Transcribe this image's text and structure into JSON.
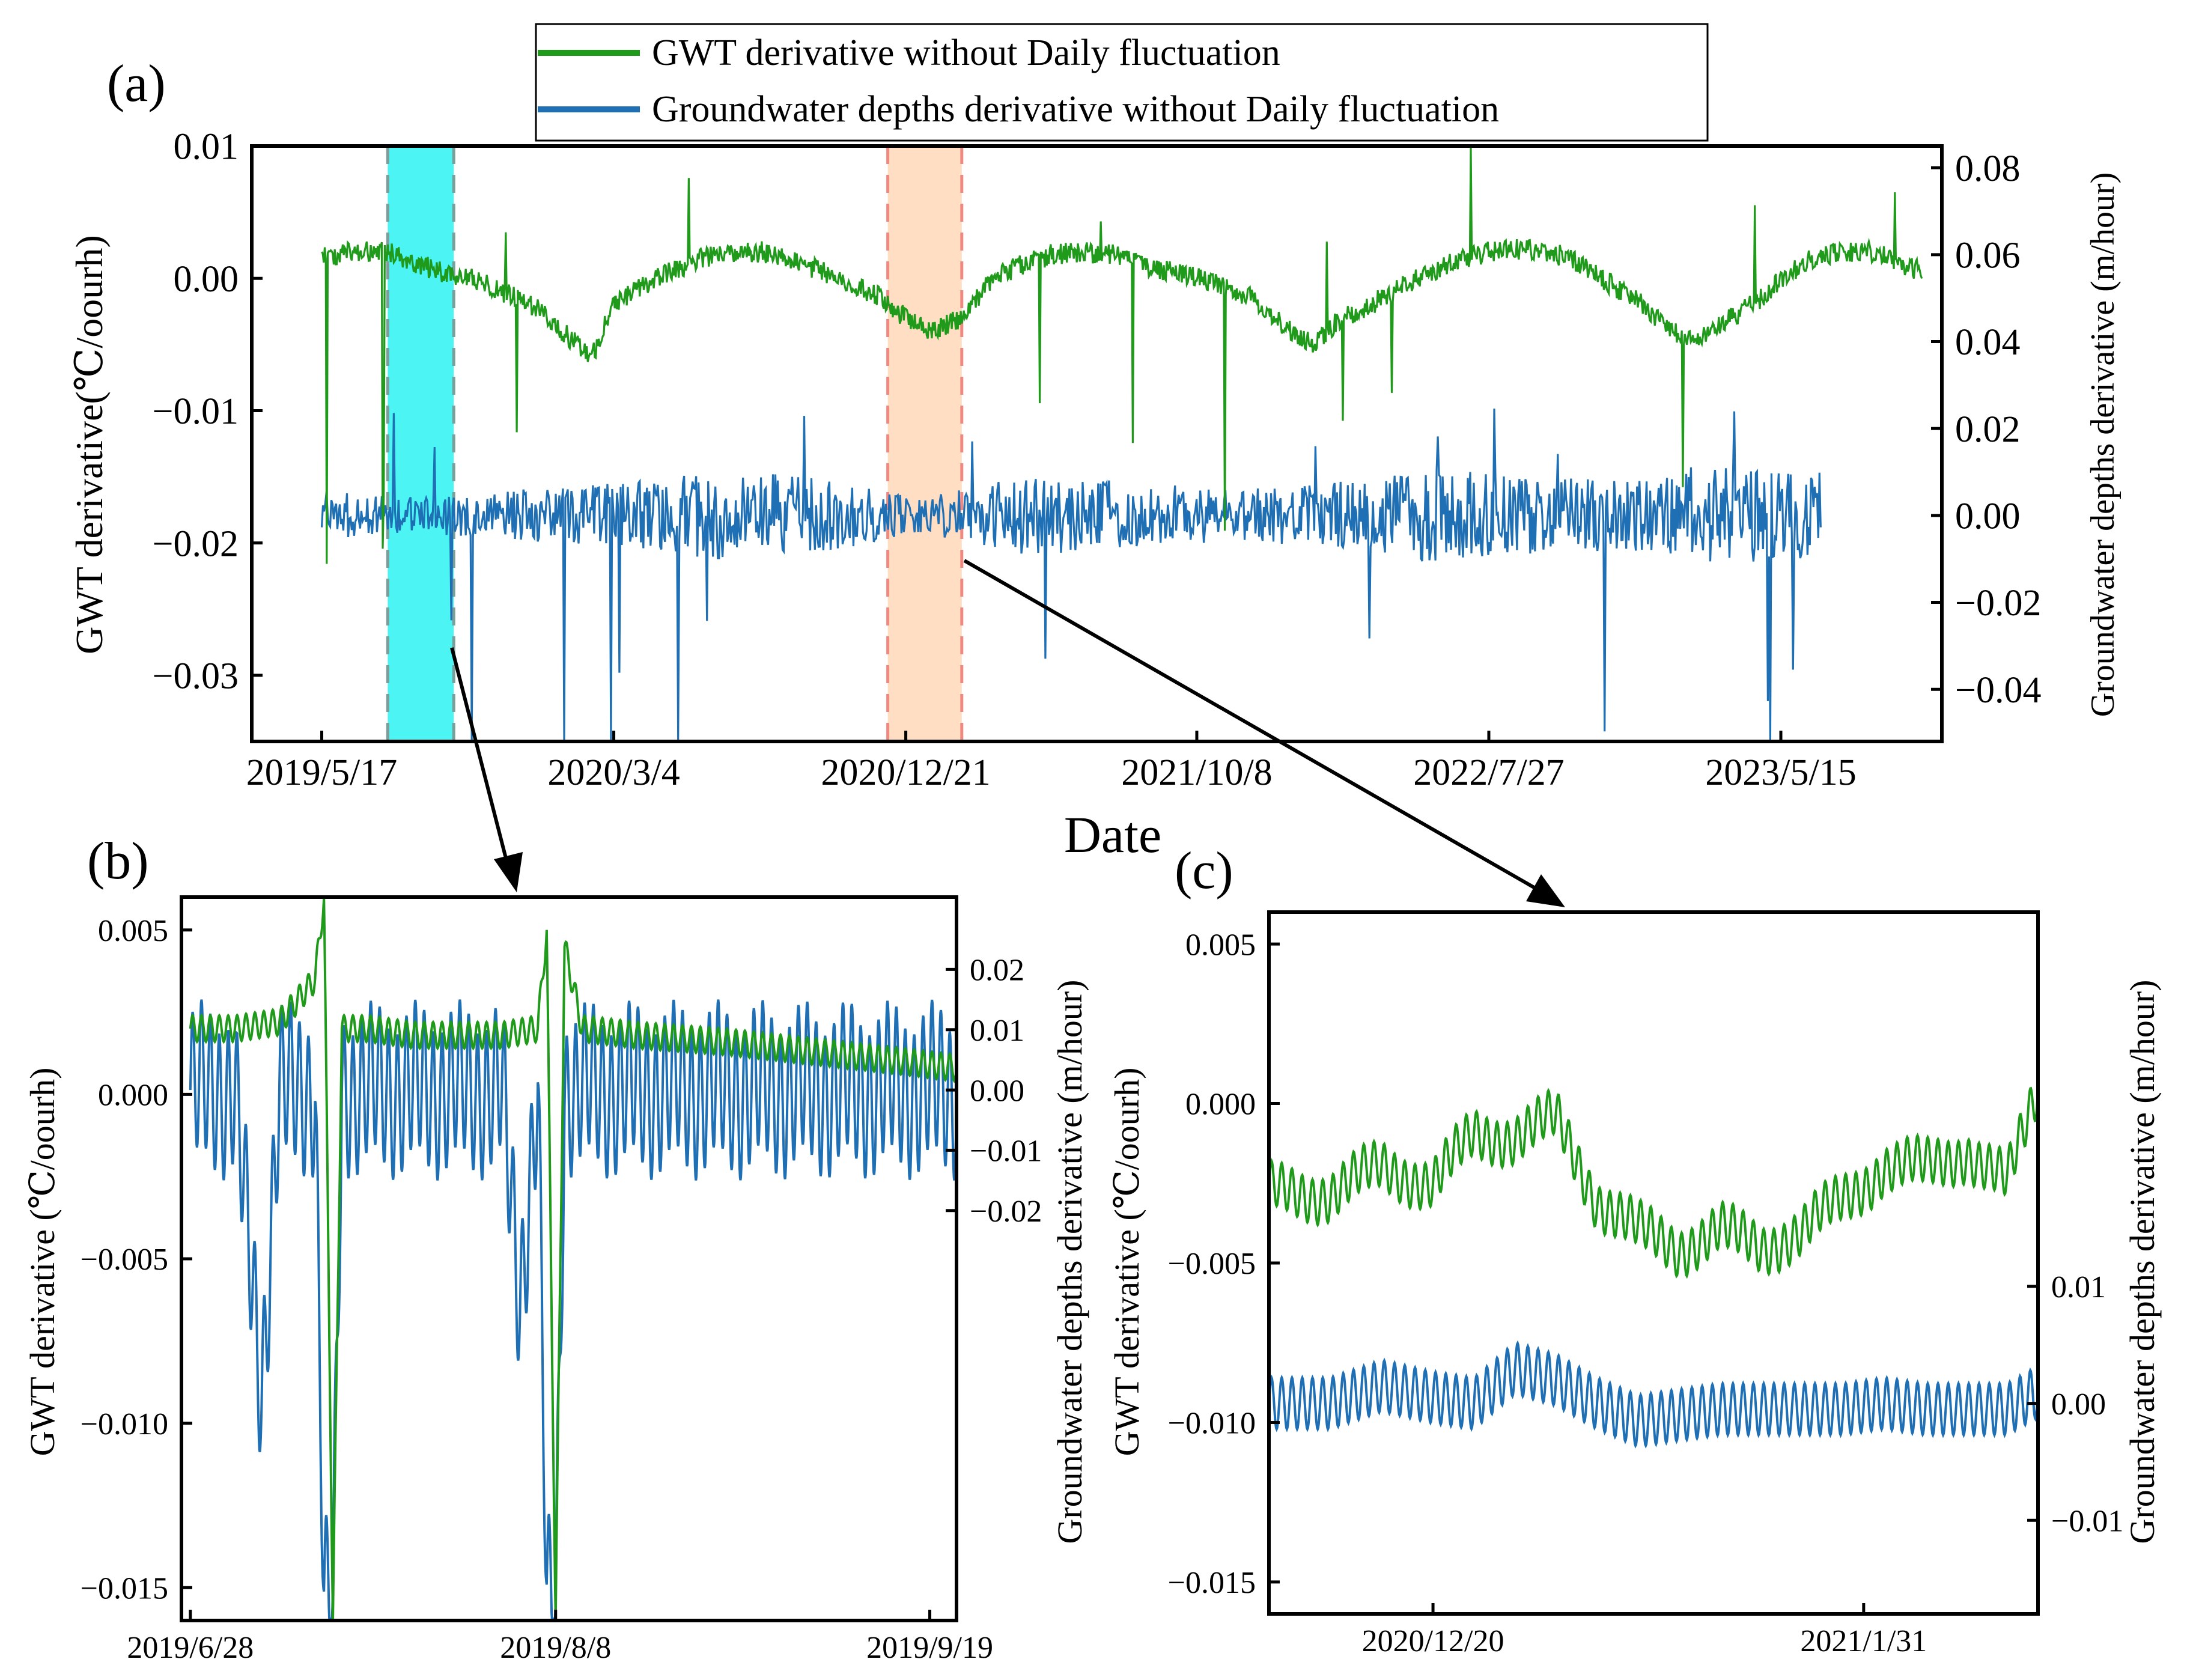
{
  "colors": {
    "green": "#1f9a1a",
    "blue": "#1f6fb5",
    "cyan": "#00f0f0",
    "peach": "#ffd3b0",
    "dash_gray": "#7a9e9a",
    "dash_red": "#f08a80"
  },
  "legend": {
    "green_label": "GWT derivative without Daily fluctuation",
    "blue_label": "Groundwater depths derivative without Daily fluctuation"
  },
  "chart_data": [
    {
      "id": "a",
      "type": "line",
      "panel_label": "(a)",
      "xlabel": "Date",
      "ylabel_left": "GWT derivative(℃/oourh)",
      "ylabel_right": "Groundwater depths derivative (m/hour)",
      "x_ticks": [
        "2019/5/17",
        "2020/3/4",
        "2020/12/21",
        "2021/10/8",
        "2022/7/27",
        "2023/5/15"
      ],
      "x_tick_days": [
        0,
        292,
        584,
        875,
        1167,
        1459
      ],
      "xlim_days": [
        -70,
        1620
      ],
      "ylim_left": [
        -0.035,
        0.01
      ],
      "ylim_right": [
        -0.052,
        0.085
      ],
      "yticks_left": [
        "0.01",
        "0.00",
        "−0.01",
        "−0.02",
        "−0.03"
      ],
      "ytick_left_values": [
        0.01,
        0.0,
        -0.01,
        -0.02,
        -0.03
      ],
      "yticks_right": [
        "0.08",
        "0.06",
        "0.04",
        "0.02",
        "0.00",
        "−0.02",
        "−0.04"
      ],
      "ytick_right_values": [
        0.08,
        0.06,
        0.04,
        0.02,
        0.0,
        -0.02,
        -0.04
      ],
      "highlights": [
        {
          "name": "b-window",
          "start_day": 66,
          "end_day": 132,
          "color": "cyan"
        },
        {
          "name": "c-window",
          "start_day": 566,
          "end_day": 640,
          "color": "peach"
        }
      ],
      "series": [
        {
          "name": "GWT derivative without Daily fluctuation",
          "axis": "left",
          "color": "green",
          "x_days": [
            0,
            30,
            60,
            90,
            120,
            150,
            180,
            210,
            240,
            270,
            292,
            320,
            350,
            380,
            410,
            440,
            470,
            500,
            530,
            560,
            584,
            610,
            640,
            670,
            700,
            730,
            760,
            790,
            820,
            850,
            875,
            900,
            930,
            960,
            990,
            1020,
            1050,
            1080,
            1110,
            1140,
            1167,
            1200,
            1230,
            1260,
            1290,
            1320,
            1350,
            1380,
            1410,
            1440,
            1459,
            1490,
            1520,
            1550,
            1600
          ],
          "values": [
            0.0015,
            0.002,
            0.0022,
            0.0012,
            0.0005,
            0.0,
            -0.001,
            -0.002,
            -0.004,
            -0.006,
            -0.002,
            -0.0005,
            0.0005,
            0.0015,
            0.002,
            0.002,
            0.0015,
            0.0005,
            -0.0005,
            -0.0015,
            -0.003,
            -0.004,
            -0.003,
            0.0,
            0.001,
            0.0018,
            0.002,
            0.0018,
            0.001,
            0.0005,
            0.0,
            -0.0005,
            -0.0015,
            -0.0035,
            -0.005,
            -0.003,
            -0.002,
            -0.0005,
            0.0005,
            0.0015,
            0.002,
            0.0022,
            0.002,
            0.001,
            -0.0005,
            -0.002,
            -0.004,
            -0.0045,
            -0.003,
            -0.0015,
            0.0,
            0.0015,
            0.002,
            0.002,
            0.0005
          ]
        },
        {
          "name": "Groundwater depths derivative without Daily fluctuation",
          "axis": "right",
          "color": "blue",
          "x_days": [
            0,
            100,
            200,
            300,
            400,
            500,
            600,
            700,
            800,
            900,
            1000,
            1100,
            1200,
            1300,
            1400,
            1500
          ],
          "values": [
            0.0,
            0.0,
            0.0,
            0.0,
            0.0,
            0.0,
            0.0,
            0.0,
            0.0,
            0.0,
            0.0,
            0.0,
            0.0,
            0.0,
            0.0,
            0.0
          ],
          "amplitude": [
            0.006,
            0.004,
            0.006,
            0.008,
            0.01,
            0.009,
            0.004,
            0.009,
            0.008,
            0.006,
            0.007,
            0.011,
            0.009,
            0.008,
            0.011,
            0.01
          ]
        }
      ]
    },
    {
      "id": "b",
      "type": "line",
      "panel_label": "(b)",
      "ylabel_left": "GWT derivative (℃/oourh)",
      "ylabel_right": "Groundwater depths derivative (m/hour)",
      "x_ticks": [
        "2019/6/28",
        "2019/8/8",
        "2019/9/19"
      ],
      "x_tick_days": [
        0,
        41,
        83
      ],
      "xlim_days": [
        -1,
        86
      ],
      "ylim_left": [
        -0.016,
        0.006
      ],
      "ylim_right": [
        -0.088,
        0.032
      ],
      "yticks_left": [
        "0.005",
        "0.000",
        "−0.005",
        "−0.010",
        "−0.015"
      ],
      "ytick_left_values": [
        0.005,
        0.0,
        -0.005,
        -0.01,
        -0.015
      ],
      "yticks_right": [
        "0.02",
        "0.01",
        "0.00",
        "−0.01",
        "−0.02"
      ],
      "ytick_right_values": [
        0.02,
        0.01,
        0.0,
        -0.01,
        -0.02
      ],
      "series": [
        {
          "name": "GWT derivative",
          "axis": "left",
          "color": "green",
          "x_days": [
            0,
            5,
            10,
            14,
            15,
            16,
            17,
            20,
            25,
            30,
            35,
            39,
            40,
            41,
            42,
            44,
            50,
            60,
            70,
            80,
            86
          ],
          "values": [
            0.002,
            0.002,
            0.0022,
            0.0035,
            0.006,
            -0.016,
            0.002,
            0.002,
            0.0018,
            0.0018,
            0.0018,
            0.002,
            0.005,
            -0.016,
            0.0045,
            0.002,
            0.0018,
            0.0016,
            0.0013,
            0.001,
            0.0008
          ]
        },
        {
          "name": "Groundwater depths derivative",
          "axis": "right",
          "color": "blue",
          "x_days": [
            0,
            5,
            8,
            10,
            14,
            15,
            16,
            17,
            20,
            25,
            30,
            35,
            37,
            39,
            40,
            41,
            42,
            44,
            50,
            60,
            70,
            80,
            86
          ],
          "values": [
            0.0,
            0.0,
            -0.05,
            0.0,
            0.0,
            -0.085,
            -0.085,
            0.0,
            0.0,
            0.0,
            0.0,
            0.0,
            -0.035,
            0.0,
            -0.085,
            -0.085,
            0.0,
            0.0,
            0.0,
            0.0,
            0.0,
            0.0,
            0.0
          ]
        }
      ]
    },
    {
      "id": "c",
      "type": "line",
      "panel_label": "(c)",
      "ylabel_left": "GWT derivative (℃/oourh)",
      "ylabel_right": "Groundwater depths derivative (m/hour)",
      "x_ticks": [
        "2020/12/20",
        "2021/1/31"
      ],
      "x_tick_days": [
        0,
        42
      ],
      "xlim_days": [
        -16,
        59
      ],
      "ylim_left": [
        -0.016,
        0.006
      ],
      "ylim_right": [
        -0.018,
        0.042
      ],
      "yticks_left": [
        "0.005",
        "0.000",
        "−0.005",
        "−0.010",
        "−0.015"
      ],
      "ytick_left_values": [
        0.005,
        0.0,
        -0.005,
        -0.01,
        -0.015
      ],
      "yticks_right": [
        "0.01",
        "0.00",
        "−0.01"
      ],
      "ytick_right_values": [
        0.01,
        0.0,
        -0.01
      ],
      "series": [
        {
          "name": "GWT derivative",
          "axis": "left",
          "color": "green",
          "x_days": [
            -16,
            -10,
            -5,
            0,
            4,
            8,
            12,
            16,
            20,
            24,
            28,
            32,
            36,
            40,
            44,
            48,
            52,
            56,
            59
          ],
          "values": [
            -0.0028,
            -0.0028,
            -0.002,
            -0.0025,
            -0.001,
            -0.001,
            -0.0005,
            -0.003,
            -0.004,
            -0.0045,
            -0.004,
            -0.0045,
            -0.004,
            -0.003,
            -0.002,
            -0.002,
            -0.0015,
            -0.0025,
            0.0005
          ]
        },
        {
          "name": "Groundwater depths derivative",
          "axis": "right",
          "color": "blue",
          "x_days": [
            -16,
            -10,
            -5,
            0,
            4,
            8,
            12,
            16,
            20,
            24,
            28,
            32,
            36,
            40,
            44,
            48,
            52,
            56,
            59
          ],
          "values": [
            0.0,
            0.0,
            0.0015,
            0.0005,
            0.0,
            0.003,
            0.002,
            0.0,
            -0.0015,
            -0.001,
            -0.0005,
            -0.0005,
            -0.0005,
            -0.0005,
            0.0,
            -0.0005,
            -0.0005,
            -0.0005,
            0.001
          ]
        }
      ]
    }
  ]
}
